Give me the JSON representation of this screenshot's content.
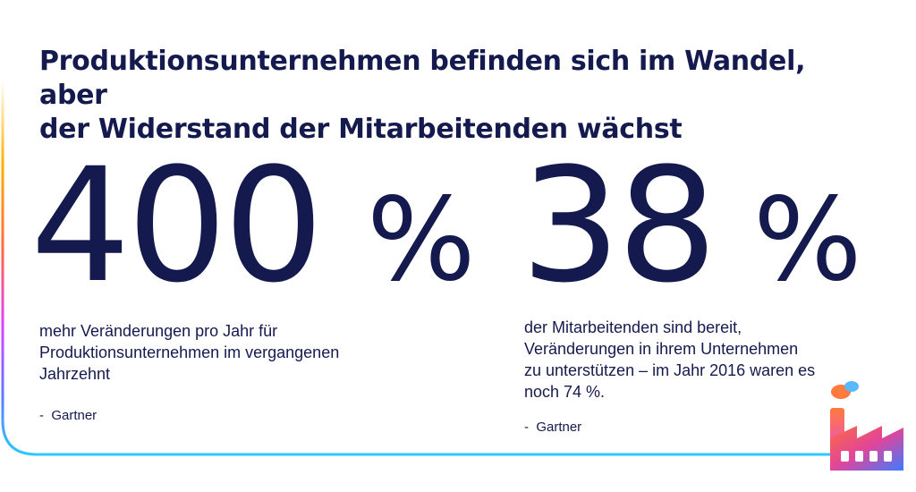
{
  "headline": {
    "line1": "Produktionsunternehmen befinden sich im Wandel, aber",
    "line2": "der Widerstand der Mitarbeitenden wächst"
  },
  "stats": [
    {
      "number": "400",
      "unit": "%",
      "description": "mehr Veränderungen pro Jahr für Produktionsunternehmen im vergangenen Jahrzehnt",
      "source": "-  Gartner"
    },
    {
      "number": "38",
      "unit": "%",
      "description": "der Mitarbeitenden sind bereit, Veränderungen in ihrem Unternehmen zu unterstützen – im Jahr 2016 waren es noch 74 %.",
      "source": "-  Gartner"
    }
  ],
  "colors": {
    "text": "#151a4e",
    "gradient": [
      "#ffb000",
      "#ff6a3d",
      "#e040fb",
      "#5a7cff",
      "#2ec8ff"
    ]
  },
  "icons": [
    "factory-icon"
  ]
}
